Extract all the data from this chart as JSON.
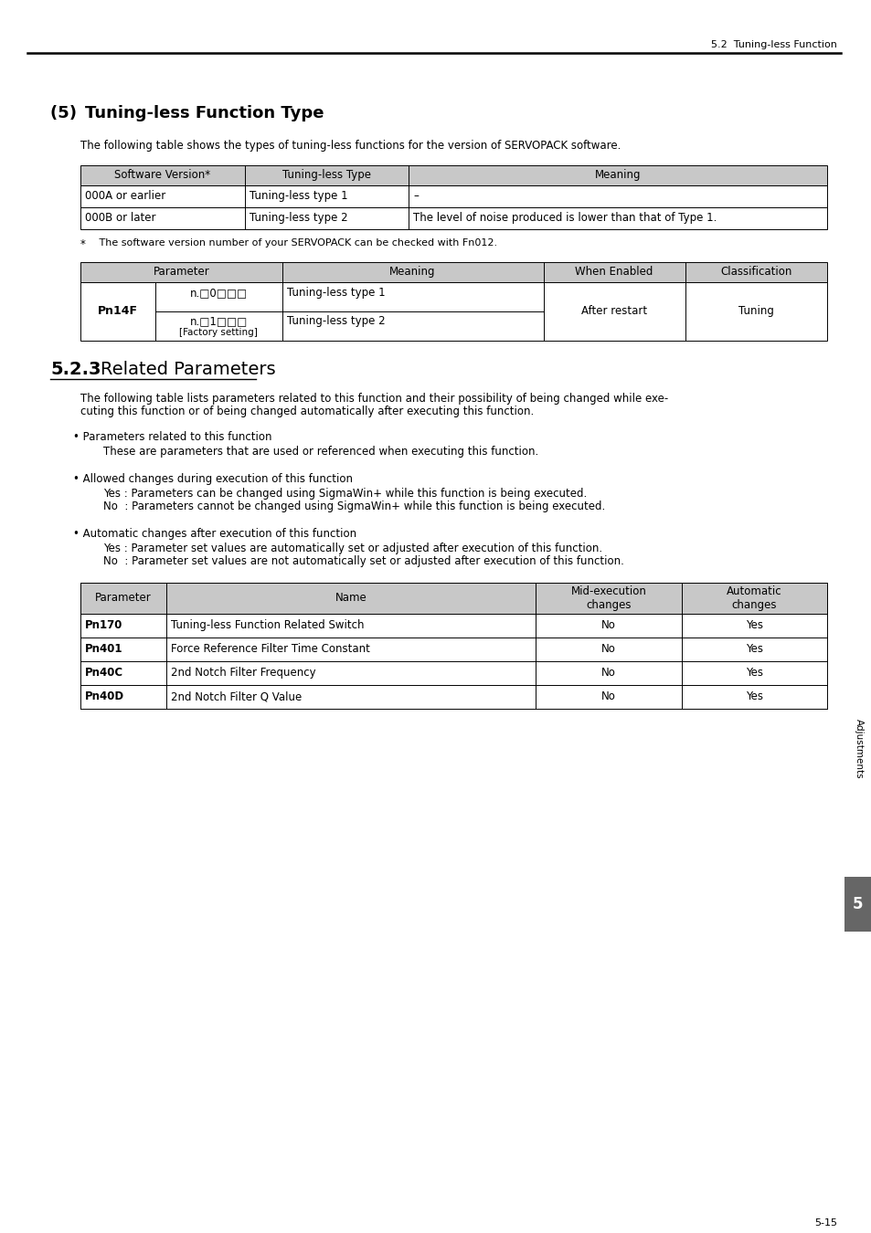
{
  "page_header": "5.2  Tuning-less Function",
  "section_title_prefix": "(5)   ",
  "section_title_main": "Tuning-less Function Type",
  "section_intro": "The following table shows the types of tuning-less functions for the version of SERVOPACK software.",
  "table1_headers": [
    "Software Version*",
    "Tuning-less Type",
    "Meaning"
  ],
  "table1_rows": [
    [
      "000A or earlier",
      "Tuning-less type 1",
      "–"
    ],
    [
      "000B or later",
      "Tuning-less type 2",
      "The level of noise produced is lower than that of Type 1."
    ]
  ],
  "footnote_star": "*",
  "footnote_text": "   The software version number of your SERVOPACK can be checked with Fn012.",
  "table2_headers": [
    "Parameter",
    "Meaning",
    "When Enabled",
    "Classification"
  ],
  "table2_param": "Pn14F",
  "table2_sub1": "n.□0□□□",
  "table2_sub2": "n.□1□□□",
  "table2_sub2b": "[Factory setting]",
  "table2_meaning1": "Tuning-less type 1",
  "table2_meaning2": "Tuning-less type 2",
  "table2_when": "After restart",
  "table2_class": "Tuning",
  "section523_num": "5.2.3",
  "section523_title": "Related Parameters",
  "para1_line1": "The following table lists parameters related to this function and their possibility of being changed while exe-",
  "para1_line2": "cuting this function or of being changed automatically after executing this function.",
  "bullet1": "• Parameters related to this function",
  "bullet1_sub": "These are parameters that are used or referenced when executing this function.",
  "bullet2": "• Allowed changes during execution of this function",
  "bullet2_yes": "Yes : Parameters can be changed using SigmaWin+ while this function is being executed.",
  "bullet2_no": "No  : Parameters cannot be changed using SigmaWin+ while this function is being executed.",
  "bullet3": "• Automatic changes after execution of this function",
  "bullet3_yes": "Yes : Parameter set values are automatically set or adjusted after execution of this function.",
  "bullet3_no": "No  : Parameter set values are not automatically set or adjusted after execution of this function.",
  "table3_headers": [
    "Parameter",
    "Name",
    "Mid-execution\nchanges",
    "Automatic\nchanges"
  ],
  "table3_rows": [
    [
      "Pn170",
      "Tuning-less Function Related Switch",
      "No",
      "Yes"
    ],
    [
      "Pn401",
      "Force Reference Filter Time Constant",
      "No",
      "Yes"
    ],
    [
      "Pn40C",
      "2nd Notch Filter Frequency",
      "No",
      "Yes"
    ],
    [
      "Pn40D",
      "2nd Notch Filter Q Value",
      "No",
      "Yes"
    ]
  ],
  "sidebar_text": "Adjustments",
  "sidebar_num": "5",
  "page_num": "5-15",
  "bg_color": "#ffffff",
  "gray_bg": "#c8c8c8",
  "dark_gray": "#666666",
  "white": "#ffffff",
  "black": "#000000",
  "white_text": "#ffffff"
}
